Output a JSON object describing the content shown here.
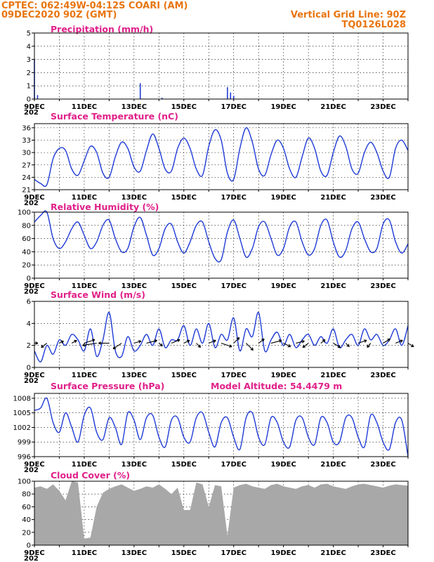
{
  "header": {
    "line1_left": "CPTEC:   062:49W-04:12S   COARI (AM)",
    "line2_left": "09DEC2020 90Z (GMT)",
    "line1_right": "Vertical Grid Line: 90Z",
    "line2_right": "TQ0126L028"
  },
  "x_ticks": [
    "9DEC",
    "11DEC",
    "13DEC",
    "15DEC",
    "17DEC",
    "19DEC",
    "21DEC",
    "23DEC"
  ],
  "year_fragment": "202",
  "colors": {
    "header": "#e8750f",
    "title": "#e0208a",
    "series": "#1f3bd6",
    "cloud": "#a8a8a8",
    "arrow": "#000000"
  },
  "chart_data": [
    {
      "type": "bar",
      "title": "Precipitation (mm/h)",
      "ylim": [
        0,
        5
      ],
      "yticks": [
        0,
        1,
        2,
        3,
        4,
        5
      ],
      "x_unit": "hours since 9DEC 00Z (3-hourly)",
      "spikes": [
        [
          0,
          3.0
        ],
        [
          3,
          0.3
        ],
        [
          102,
          1.2
        ],
        [
          123,
          0.1
        ],
        [
          186,
          0.9
        ],
        [
          189,
          0.5
        ],
        [
          192,
          0.25
        ]
      ]
    },
    {
      "type": "line",
      "title": "Surface Temperature (nC)",
      "ylim": [
        21,
        37
      ],
      "yticks": [
        21,
        24,
        27,
        30,
        33,
        36
      ],
      "x_hours": [
        0,
        6,
        12,
        18,
        24,
        30,
        36,
        42,
        48,
        54,
        60,
        66,
        72,
        78,
        84,
        90,
        96,
        102,
        108,
        114,
        120,
        126,
        132,
        138,
        144,
        150,
        156,
        162,
        168,
        174,
        180,
        186,
        192,
        198,
        204,
        210,
        216,
        222,
        228,
        234,
        240,
        246,
        252,
        258,
        264,
        270,
        276,
        282,
        288,
        294,
        300,
        306,
        312,
        318,
        324,
        330,
        336,
        342,
        348,
        354,
        360
      ],
      "values": [
        23.5,
        22.5,
        22.2,
        28.5,
        31.0,
        30.5,
        26.0,
        24.5,
        28.0,
        31.5,
        30.0,
        25.0,
        24.0,
        29.0,
        32.5,
        31.0,
        26.5,
        25.5,
        30.5,
        34.5,
        31.0,
        26.0,
        25.5,
        31.0,
        33.5,
        31.0,
        26.0,
        24.5,
        31.5,
        35.5,
        33.0,
        25.0,
        23.5,
        31.0,
        36.0,
        32.5,
        26.0,
        24.5,
        29.5,
        33.0,
        31.0,
        26.0,
        24.0,
        29.0,
        33.5,
        31.0,
        25.5,
        24.5,
        30.0,
        34.0,
        31.5,
        26.0,
        25.0,
        30.0,
        32.5,
        30.0,
        25.5,
        24.0,
        31.0,
        33.0,
        30.5
      ]
    },
    {
      "type": "line",
      "title": "Relative Humidity (%)",
      "ylim": [
        0,
        100
      ],
      "yticks": [
        0,
        20,
        40,
        60,
        80,
        100
      ],
      "x_hours": [
        0,
        6,
        12,
        18,
        24,
        30,
        36,
        42,
        48,
        54,
        60,
        66,
        72,
        78,
        84,
        90,
        96,
        102,
        108,
        114,
        120,
        126,
        132,
        138,
        144,
        150,
        156,
        162,
        168,
        174,
        180,
        186,
        192,
        198,
        204,
        210,
        216,
        222,
        228,
        234,
        240,
        246,
        252,
        258,
        264,
        270,
        276,
        282,
        288,
        294,
        300,
        306,
        312,
        318,
        324,
        330,
        336,
        342,
        348,
        354,
        360
      ],
      "values": [
        85,
        95,
        100,
        60,
        45,
        55,
        75,
        85,
        65,
        45,
        55,
        80,
        88,
        60,
        40,
        45,
        78,
        92,
        65,
        35,
        45,
        75,
        82,
        55,
        38,
        55,
        80,
        85,
        55,
        30,
        28,
        70,
        88,
        60,
        32,
        45,
        78,
        85,
        60,
        35,
        45,
        78,
        85,
        55,
        35,
        45,
        80,
        88,
        55,
        32,
        42,
        75,
        85,
        60,
        40,
        45,
        82,
        88,
        55,
        38,
        52
      ]
    },
    {
      "type": "line",
      "title": "Surface Wind (m/s)",
      "ylim": [
        0,
        6
      ],
      "yticks": [
        0,
        2,
        4,
        6
      ],
      "x_hours": [
        0,
        6,
        12,
        18,
        24,
        30,
        36,
        42,
        48,
        54,
        60,
        66,
        72,
        78,
        84,
        90,
        96,
        102,
        108,
        114,
        120,
        126,
        132,
        138,
        144,
        150,
        156,
        162,
        168,
        174,
        180,
        186,
        192,
        198,
        204,
        210,
        216,
        222,
        228,
        234,
        240,
        246,
        252,
        258,
        264,
        270,
        276,
        282,
        288,
        294,
        300,
        306,
        312,
        318,
        324,
        330,
        336,
        342,
        348,
        354,
        360
      ],
      "values": [
        1.5,
        0.5,
        2.0,
        1.2,
        2.5,
        2.0,
        3.0,
        2.5,
        1.5,
        3.5,
        1.0,
        2.5,
        5.0,
        1.5,
        1.0,
        2.8,
        1.5,
        2.0,
        3.0,
        2.0,
        3.5,
        1.8,
        2.5,
        2.5,
        3.8,
        2.0,
        3.5,
        2.2,
        4.0,
        1.8,
        3.0,
        2.5,
        4.5,
        1.5,
        3.5,
        2.8,
        5.0,
        1.5,
        2.5,
        3.2,
        2.0,
        3.0,
        1.8,
        2.5,
        3.0,
        2.0,
        2.8,
        2.2,
        3.5,
        1.8,
        2.5,
        3.0,
        2.0,
        3.5,
        2.5,
        3.0,
        2.0,
        2.5,
        3.5,
        2.0,
        3.8
      ],
      "vectors_x_hours": [
        0,
        12,
        24,
        36,
        48,
        60,
        72,
        84,
        96,
        108,
        120,
        132,
        144,
        156,
        168,
        180,
        192,
        204,
        216,
        228,
        240,
        252,
        264,
        276,
        288,
        300,
        312,
        324,
        336,
        348,
        360
      ],
      "vectors_u": [
        0.5,
        -0.8,
        0.6,
        0.7,
        1.5,
        -2.0,
        -1.5,
        -1.2,
        1.0,
        1.5,
        0.5,
        1.2,
        0.8,
        0.6,
        1.0,
        1.5,
        0.8,
        1.0,
        0.8,
        1.5,
        1.0,
        1.2,
        -0.8,
        0.6,
        1.0,
        0.5,
        1.2,
        -0.5,
        1.0,
        1.0,
        0.8
      ],
      "vectors_v": [
        0.0,
        -0.6,
        0.3,
        0.4,
        0.5,
        -0.3,
        0.0,
        -0.8,
        0.3,
        0.4,
        -0.4,
        0.5,
        0.4,
        -0.6,
        0.4,
        -0.5,
        0.8,
        -1.0,
        0.6,
        0.4,
        -0.5,
        0.3,
        -0.6,
        0.5,
        -0.6,
        -0.5,
        0.4,
        -0.6,
        0.6,
        0.4,
        -0.5
      ]
    },
    {
      "type": "line",
      "title": "Surface Pressure (hPa)",
      "annotation": "Model Altitude: 54.4479  m",
      "ylim": [
        996,
        1009
      ],
      "yticks": [
        996,
        999,
        1002,
        1005,
        1008
      ],
      "x_hours": [
        0,
        6,
        12,
        18,
        24,
        30,
        36,
        42,
        48,
        54,
        60,
        66,
        72,
        78,
        84,
        90,
        96,
        102,
        108,
        114,
        120,
        126,
        132,
        138,
        144,
        150,
        156,
        162,
        168,
        174,
        180,
        186,
        192,
        198,
        204,
        210,
        216,
        222,
        228,
        234,
        240,
        246,
        252,
        258,
        264,
        270,
        276,
        282,
        288,
        294,
        300,
        306,
        312,
        318,
        324,
        330,
        336,
        342,
        348,
        354,
        360
      ],
      "values": [
        1005.5,
        1006.0,
        1008.0,
        1003.0,
        1001.0,
        1005.0,
        1002.0,
        999.0,
        1004.5,
        1006.0,
        1001.0,
        999.5,
        1004.0,
        1002.0,
        998.5,
        1005.0,
        1003.5,
        999.5,
        1004.0,
        1004.5,
        1000.0,
        998.0,
        1003.5,
        1004.0,
        1000.0,
        999.0,
        1004.0,
        1005.0,
        1001.0,
        998.0,
        1003.0,
        1004.0,
        1000.0,
        997.5,
        1004.0,
        1005.0,
        1000.0,
        998.5,
        1004.0,
        1003.0,
        999.0,
        998.0,
        1003.5,
        1004.0,
        1000.0,
        998.5,
        1004.0,
        1003.0,
        999.0,
        999.0,
        1004.0,
        1004.0,
        1000.0,
        998.0,
        1004.5,
        1003.0,
        999.0,
        997.5,
        1003.0,
        1003.5,
        996.0
      ]
    },
    {
      "type": "area",
      "title": "Cloud Cover (%)",
      "ylim": [
        0,
        100
      ],
      "yticks": [
        0,
        20,
        40,
        60,
        80,
        100
      ],
      "x_hours": [
        0,
        6,
        12,
        18,
        24,
        30,
        36,
        42,
        48,
        54,
        60,
        66,
        72,
        78,
        84,
        90,
        96,
        102,
        108,
        114,
        120,
        126,
        132,
        138,
        144,
        150,
        156,
        162,
        168,
        174,
        180,
        186,
        192,
        198,
        204,
        210,
        216,
        222,
        228,
        234,
        240,
        246,
        252,
        258,
        264,
        270,
        276,
        282,
        288,
        294,
        300,
        306,
        312,
        318,
        324,
        330,
        336,
        342,
        348,
        354,
        360
      ],
      "values": [
        90,
        92,
        88,
        95,
        85,
        70,
        100,
        98,
        10,
        12,
        60,
        82,
        88,
        92,
        95,
        90,
        85,
        88,
        92,
        90,
        95,
        88,
        80,
        90,
        55,
        55,
        98,
        95,
        60,
        94,
        92,
        15,
        90,
        94,
        96,
        92,
        90,
        88,
        94,
        96,
        92,
        90,
        88,
        92,
        94,
        90,
        95,
        96,
        92,
        90,
        88,
        92,
        95,
        96,
        94,
        92,
        90,
        93,
        95,
        94,
        93
      ]
    }
  ]
}
